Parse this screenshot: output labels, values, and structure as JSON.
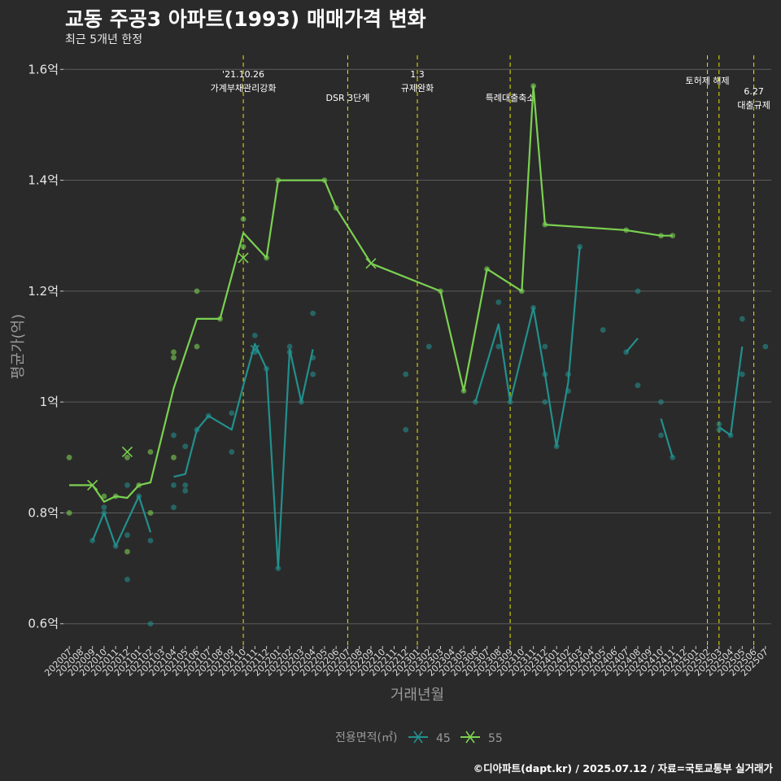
{
  "title": "교동 주공3 아파트(1993) 매매가격 변화",
  "subtitle": "최근 5개년 한정",
  "caption": "©디아파트(dapt.kr) / 2025.07.12 / 자료=국토교통부 실거래가",
  "colors": {
    "background": "#2b2a2a",
    "grid": "#5c5c5c",
    "series_45": "#21908d",
    "series_55": "#7ad151",
    "event_line": "#e6e600"
  },
  "chart_data": {
    "type": "line",
    "xlabel": "거래년월",
    "ylabel": "평균가(억)",
    "ylim": [
      0.56,
      1.64
    ],
    "grid": true,
    "legend_position": "bottom",
    "legend_title": "전용면적(㎡)",
    "y_ticks": [
      {
        "value": 0.6,
        "label": "0.6억"
      },
      {
        "value": 0.8,
        "label": "0.8억"
      },
      {
        "value": 1.0,
        "label": "1억"
      },
      {
        "value": 1.2,
        "label": "1.2억"
      },
      {
        "value": 1.4,
        "label": "1.4억"
      },
      {
        "value": 1.6,
        "label": "1.6억"
      }
    ],
    "categories": [
      "202007",
      "202008",
      "202009",
      "202010",
      "202011",
      "202012",
      "202101",
      "202102",
      "202103",
      "202104",
      "202105",
      "202106",
      "202107",
      "202108",
      "202109",
      "202110",
      "202111",
      "202112",
      "202201",
      "202202",
      "202203",
      "202204",
      "202205",
      "202206",
      "202207",
      "202208",
      "202209",
      "202210",
      "202211",
      "202212",
      "202301",
      "202302",
      "202303",
      "202304",
      "202305",
      "202306",
      "202307",
      "202308",
      "202309",
      "202310",
      "202311",
      "202312",
      "202401",
      "202402",
      "202403",
      "202404",
      "202405",
      "202406",
      "202407",
      "202408",
      "202409",
      "202410",
      "202411",
      "202412",
      "202501",
      "202502",
      "202503",
      "202504",
      "202505",
      "202506",
      "202507"
    ],
    "series": [
      {
        "name": "45",
        "color": "#21908d",
        "line": [
          [
            [
              "202009",
              0.75
            ],
            [
              "202010",
              0.8
            ],
            [
              "202011",
              0.74
            ],
            [
              "202012",
              0.785
            ],
            [
              "202101",
              0.83
            ],
            [
              "202102",
              0.765
            ]
          ],
          [
            [
              "202104",
              0.865
            ],
            [
              "202105",
              0.87
            ],
            [
              "202106",
              0.95
            ],
            [
              "202107",
              0.975
            ],
            [
              "202109",
              0.95
            ],
            [
              "202110",
              1.03
            ],
            [
              "202111",
              1.105
            ],
            [
              "202112",
              1.06
            ],
            [
              "202201",
              0.7
            ],
            [
              "202202",
              1.095
            ],
            [
              "202203",
              1.0
            ],
            [
              "202204",
              1.095
            ]
          ],
          [
            [
              "202306",
              1.0
            ],
            [
              "202308",
              1.14
            ],
            [
              "202309",
              1.0
            ],
            [
              "202311",
              1.17
            ],
            [
              "202312",
              1.05
            ],
            [
              "202401",
              0.92
            ],
            [
              "202402",
              1.035
            ],
            [
              "202403",
              1.28
            ]
          ],
          [
            [
              "202407",
              1.09
            ],
            [
              "202408",
              1.115
            ]
          ],
          [
            [
              "202410",
              0.97
            ],
            [
              "202411",
              0.9
            ]
          ],
          [
            [
              "202503",
              0.955
            ],
            [
              "202504",
              0.94
            ],
            [
              "202505",
              1.1
            ]
          ]
        ],
        "points": [
          [
            "202009",
            0.75
          ],
          [
            "202010",
            0.8
          ],
          [
            "202010",
            0.81
          ],
          [
            "202011",
            0.74
          ],
          [
            "202012",
            0.76
          ],
          [
            "202012",
            0.85
          ],
          [
            "202012",
            0.68
          ],
          [
            "202101",
            0.83
          ],
          [
            "202102",
            0.75
          ],
          [
            "202102",
            0.6
          ],
          [
            "202104",
            0.94
          ],
          [
            "202104",
            0.85
          ],
          [
            "202104",
            0.81
          ],
          [
            "202105",
            0.92
          ],
          [
            "202105",
            0.85
          ],
          [
            "202105",
            0.84
          ],
          [
            "202106",
            0.95
          ],
          [
            "202107",
            0.975
          ],
          [
            "202109",
            0.91
          ],
          [
            "202109",
            0.98
          ],
          [
            "202111",
            1.12
          ],
          [
            "202111",
            1.09
          ],
          [
            "202112",
            1.06
          ],
          [
            "202201",
            0.7
          ],
          [
            "202202",
            1.1
          ],
          [
            "202202",
            1.09
          ],
          [
            "202203",
            1.0
          ],
          [
            "202204",
            1.16
          ],
          [
            "202204",
            1.08
          ],
          [
            "202204",
            1.05
          ],
          [
            "202212",
            1.05
          ],
          [
            "202212",
            0.95
          ],
          [
            "202302",
            1.1
          ],
          [
            "202306",
            1.0
          ],
          [
            "202308",
            1.18
          ],
          [
            "202308",
            1.1
          ],
          [
            "202309",
            1.0
          ],
          [
            "202311",
            1.17
          ],
          [
            "202312",
            1.1
          ],
          [
            "202312",
            1.05
          ],
          [
            "202312",
            1.0
          ],
          [
            "202401",
            0.92
          ],
          [
            "202402",
            1.05
          ],
          [
            "202402",
            1.02
          ],
          [
            "202403",
            1.28
          ],
          [
            "202405",
            1.13
          ],
          [
            "202407",
            1.09
          ],
          [
            "202408",
            1.2
          ],
          [
            "202408",
            1.03
          ],
          [
            "202410",
            1.0
          ],
          [
            "202410",
            0.94
          ],
          [
            "202411",
            0.9
          ],
          [
            "202503",
            0.96
          ],
          [
            "202503",
            0.95
          ],
          [
            "202504",
            0.94
          ],
          [
            "202505",
            1.15
          ],
          [
            "202505",
            1.05
          ],
          [
            "202507",
            1.1
          ]
        ]
      },
      {
        "name": "55",
        "color": "#7ad151",
        "line": [
          [
            [
              "202007",
              0.85
            ],
            [
              "202008",
              0.85
            ],
            [
              "202009",
              0.85
            ],
            [
              "202010",
              0.82
            ],
            [
              "202011",
              0.83
            ],
            [
              "202012",
              0.827
            ],
            [
              "202101",
              0.85
            ],
            [
              "202102",
              0.855
            ],
            [
              "202104",
              1.025
            ],
            [
              "202106",
              1.15
            ],
            [
              "202108",
              1.15
            ],
            [
              "202110",
              1.305
            ],
            [
              "202112",
              1.26
            ],
            [
              "202201",
              1.4
            ],
            [
              "202205",
              1.4
            ],
            [
              "202206",
              1.35
            ],
            [
              "202209",
              1.25
            ],
            [
              "202303",
              1.2
            ],
            [
              "202305",
              1.02
            ],
            [
              "202307",
              1.24
            ],
            [
              "202310",
              1.2
            ],
            [
              "202311",
              1.57
            ],
            [
              "202312",
              1.32
            ],
            [
              "202407",
              1.31
            ],
            [
              "202410",
              1.3
            ],
            [
              "202411",
              1.3
            ]
          ]
        ],
        "points": [
          [
            "202007",
            0.9
          ],
          [
            "202007",
            0.8
          ],
          [
            "202010",
            0.83
          ],
          [
            "202011",
            0.83
          ],
          [
            "202012",
            0.9
          ],
          [
            "202012",
            0.73
          ],
          [
            "202101",
            0.85
          ],
          [
            "202102",
            0.91
          ],
          [
            "202102",
            0.8
          ],
          [
            "202104",
            1.09
          ],
          [
            "202104",
            1.08
          ],
          [
            "202104",
            0.9
          ],
          [
            "202106",
            1.2
          ],
          [
            "202106",
            1.1
          ],
          [
            "202108",
            1.15
          ],
          [
            "202110",
            1.33
          ],
          [
            "202110",
            1.28
          ],
          [
            "202112",
            1.26
          ],
          [
            "202201",
            1.4
          ],
          [
            "202205",
            1.4
          ],
          [
            "202206",
            1.35
          ],
          [
            "202303",
            1.2
          ],
          [
            "202305",
            1.02
          ],
          [
            "202307",
            1.24
          ],
          [
            "202310",
            1.2
          ],
          [
            "202311",
            1.57
          ],
          [
            "202312",
            1.32
          ],
          [
            "202407",
            1.31
          ],
          [
            "202410",
            1.3
          ],
          [
            "202411",
            1.3
          ]
        ],
        "cross_markers": [
          [
            "202009",
            0.85
          ],
          [
            "202012",
            0.91
          ],
          [
            "202110",
            1.26
          ],
          [
            "202209",
            1.25
          ]
        ]
      }
    ],
    "event_lines": [
      {
        "month": "202110",
        "labels": [
          "'21.10.26",
          "가계부채관리강화"
        ]
      },
      {
        "month": "202207",
        "labels": [
          "DSR 3단계"
        ]
      },
      {
        "month": "202301",
        "labels": [
          "1.3",
          "규제완화"
        ]
      },
      {
        "month": "202309",
        "labels": [
          "특례대출축소"
        ]
      },
      {
        "month": "202502",
        "labels": [
          "토허제 해제"
        ]
      },
      {
        "month": "202503",
        "labels": []
      },
      {
        "month": "202506",
        "labels": [
          "6.27",
          "대출규제"
        ]
      }
    ]
  }
}
